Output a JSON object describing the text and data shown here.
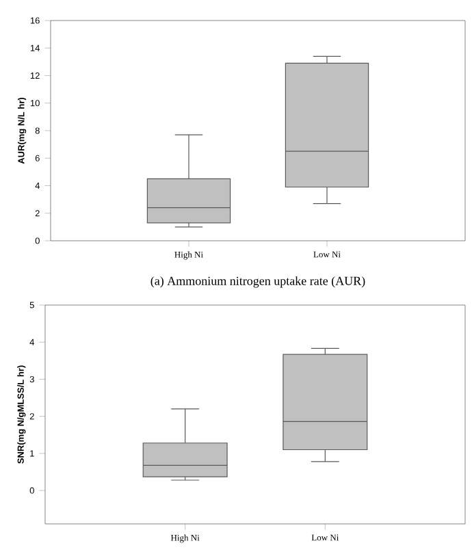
{
  "chart_data": [
    {
      "type": "box",
      "ylabel": "AUR(mg N/L hr)",
      "categories": [
        "High Ni",
        "Low Ni"
      ],
      "color": "#c0c0c0",
      "ylim": [
        0,
        16
      ],
      "yticks": [
        0,
        2,
        4,
        6,
        8,
        10,
        12,
        14,
        16
      ],
      "grid": false,
      "boxes": [
        {
          "low": 1.0,
          "q1": 1.3,
          "median": 2.4,
          "q3": 4.5,
          "high": 7.7
        },
        {
          "low": 2.7,
          "q1": 3.9,
          "median": 6.5,
          "q3": 12.9,
          "high": 13.4
        }
      ],
      "annotations": [
        "(a) Ammonium nitrogen uptake rate (AUR)"
      ]
    },
    {
      "type": "box",
      "ylabel": "SNR(mg N/gMLSS/L hr)",
      "categories": [
        "High Ni",
        "Low Ni"
      ],
      "color": "#c0c0c0",
      "ylim": [
        -0.9,
        5
      ],
      "yticks": [
        0,
        1,
        2,
        3,
        4,
        5
      ],
      "grid": false,
      "boxes": [
        {
          "low": 0.28,
          "q1": 0.37,
          "median": 0.68,
          "q3": 1.28,
          "high": 2.2
        },
        {
          "low": 0.78,
          "q1": 1.1,
          "median": 1.86,
          "q3": 3.67,
          "high": 3.83
        }
      ]
    }
  ]
}
